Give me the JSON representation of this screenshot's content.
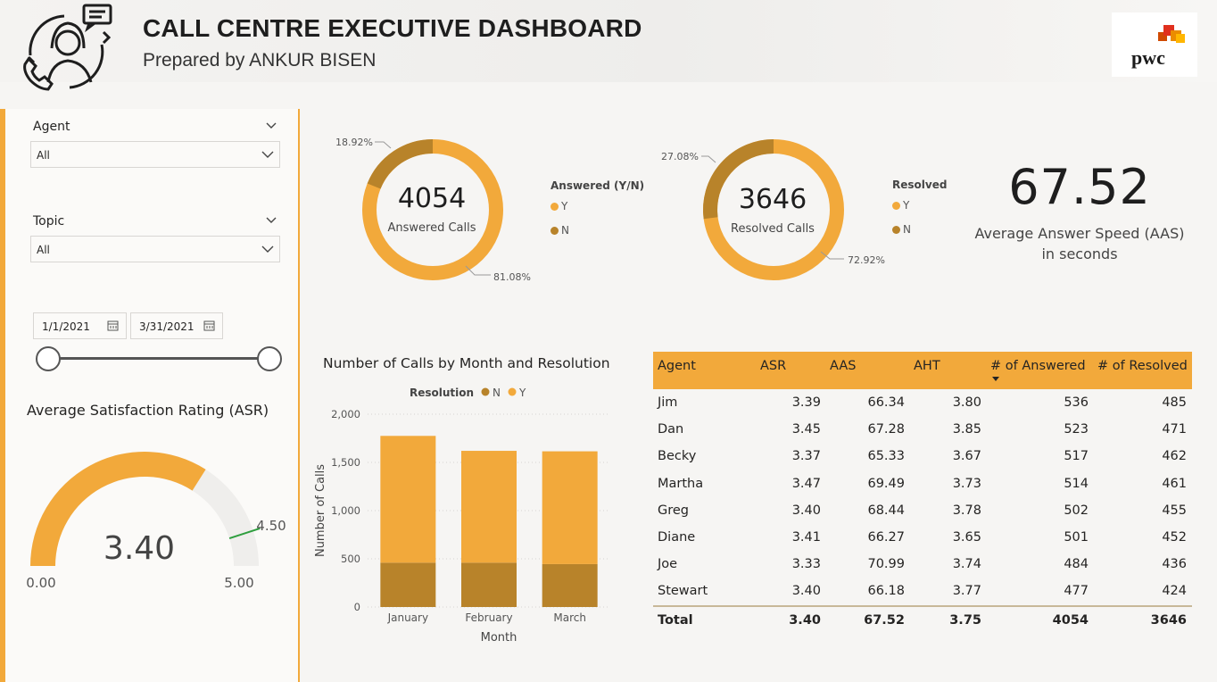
{
  "header": {
    "title": "CALL CENTRE EXECUTIVE DASHBOARD",
    "subtitle": "Prepared by ANKUR BISEN",
    "logo_text": "pwc"
  },
  "filters": {
    "agent": {
      "label": "Agent",
      "value": "All"
    },
    "topic": {
      "label": "Topic",
      "value": "All"
    },
    "date_start": "1/1/2021",
    "date_end": "3/31/2021"
  },
  "asr_gauge": {
    "title": "Average Satisfaction Rating (ASR)",
    "value_label": "3.40",
    "min_label": "0.00",
    "max_label": "5.00",
    "target_label": "4.50",
    "value": 3.4,
    "min": 0,
    "max": 5,
    "target": 4.5
  },
  "answered_donut": {
    "value": "4054",
    "caption": "Answered Calls",
    "legend_title": "Answered (Y/N)",
    "legend_y": "Y",
    "legend_n": "N",
    "pct_y_label": "81.08%",
    "pct_n_label": "18.92%",
    "pct_y": 81.08,
    "pct_n": 18.92
  },
  "resolved_donut": {
    "value": "3646",
    "caption": "Resolved Calls",
    "legend_title": "Resolved",
    "legend_y": "Y",
    "legend_n": "N",
    "pct_y_label": "72.92%",
    "pct_n_label": "27.08%",
    "pct_y": 72.92,
    "pct_n": 27.08
  },
  "aas_kpi": {
    "value": "67.52",
    "line1": "Average Answer Speed (AAS)",
    "line2": "in seconds"
  },
  "colors": {
    "yes": "#f2a93b",
    "no": "#b8832a",
    "gauge_bg": "#efeeec",
    "target": "#2e9e3e"
  },
  "chart_data": {
    "type": "bar",
    "title": "Number of Calls by Month and Resolution",
    "legend_title": "Resolution",
    "legend": [
      "N",
      "Y"
    ],
    "categories": [
      "January",
      "February",
      "March"
    ],
    "series": [
      {
        "name": "N",
        "values": [
          460,
          460,
          445
        ]
      },
      {
        "name": "Y",
        "values": [
          1315,
          1160,
          1170
        ]
      }
    ],
    "xlabel": "Month",
    "ylabel": "Number of Calls",
    "yticks": [
      "0",
      "500",
      "1,000",
      "1,500",
      "2,000"
    ],
    "ylim": [
      0,
      2000
    ]
  },
  "table": {
    "headers": [
      "Agent",
      "ASR",
      "AAS",
      "AHT",
      "# of Answered",
      "# of Resolved"
    ],
    "rows": [
      [
        "Jim",
        "3.39",
        "66.34",
        "3.80",
        "536",
        "485"
      ],
      [
        "Dan",
        "3.45",
        "67.28",
        "3.85",
        "523",
        "471"
      ],
      [
        "Becky",
        "3.37",
        "65.33",
        "3.67",
        "517",
        "462"
      ],
      [
        "Martha",
        "3.47",
        "69.49",
        "3.73",
        "514",
        "461"
      ],
      [
        "Greg",
        "3.40",
        "68.44",
        "3.78",
        "502",
        "455"
      ],
      [
        "Diane",
        "3.41",
        "66.27",
        "3.65",
        "501",
        "452"
      ],
      [
        "Joe",
        "3.33",
        "70.99",
        "3.74",
        "484",
        "436"
      ],
      [
        "Stewart",
        "3.40",
        "66.18",
        "3.77",
        "477",
        "424"
      ]
    ],
    "total": [
      "Total",
      "3.40",
      "67.52",
      "3.75",
      "4054",
      "3646"
    ]
  }
}
